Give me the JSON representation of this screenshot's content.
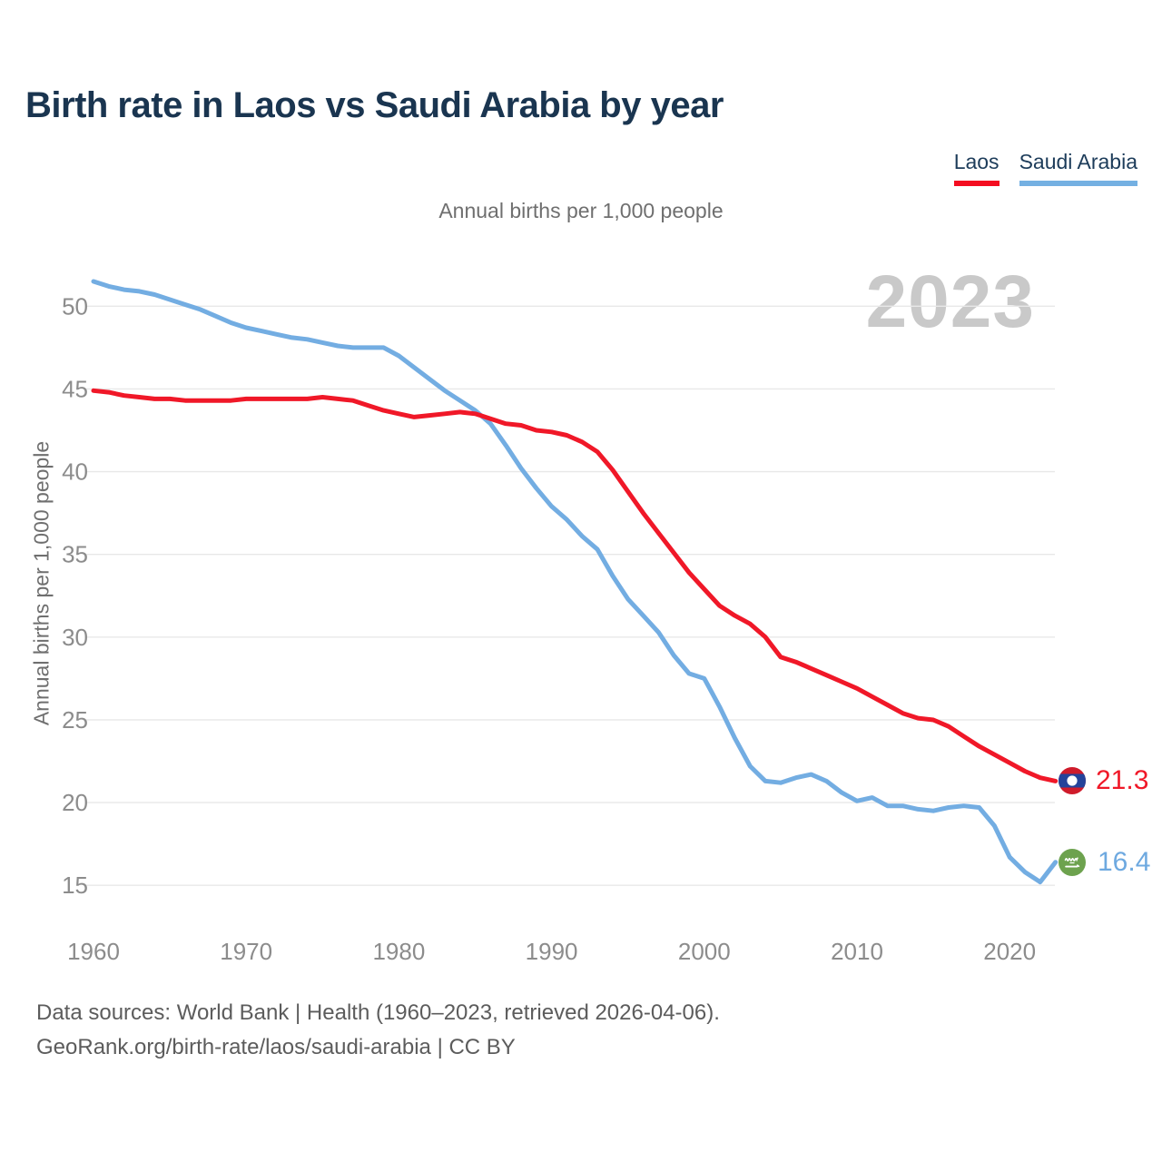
{
  "title": "Birth rate in Laos vs Saudi Arabia by year",
  "subtitle": "Annual births per 1,000 people",
  "watermark": "2023",
  "legend": {
    "laos": {
      "label": "Laos",
      "color": "#f01828"
    },
    "saudi_arabia": {
      "label": "Saudi Arabia",
      "color": "#73ade2"
    }
  },
  "y_axis": {
    "label": "Annual births per 1,000 people",
    "ticks": [
      50,
      45,
      40,
      35,
      30,
      25,
      20,
      15
    ]
  },
  "x_axis": {
    "ticks": [
      1960,
      1970,
      1980,
      1990,
      2000,
      2010,
      2020
    ]
  },
  "end_labels": {
    "laos": {
      "value": "21.3",
      "flag": "laos-flag"
    },
    "saudi_arabia": {
      "value": "16.4",
      "flag": "saudi-arabia-flag"
    }
  },
  "footer": {
    "line1": "Data sources: World Bank | Health (1960–2023, retrieved 2026-04-06).",
    "line2": "GeoRank.org/birth-rate/laos/saudi-arabia | CC BY"
  },
  "chart_data": {
    "type": "line",
    "title": "Birth rate in Laos vs Saudi Arabia by year",
    "subtitle": "Annual births per 1,000 people",
    "xlabel": "",
    "ylabel": "Annual births per 1,000 people",
    "xlim": [
      1960,
      2023
    ],
    "ylim": [
      15,
      52
    ],
    "grid": "horizontal",
    "legend_position": "top-right",
    "watermark": "2023",
    "x": [
      1960,
      1961,
      1962,
      1963,
      1964,
      1965,
      1966,
      1967,
      1968,
      1969,
      1970,
      1971,
      1972,
      1973,
      1974,
      1975,
      1976,
      1977,
      1978,
      1979,
      1980,
      1981,
      1982,
      1983,
      1984,
      1985,
      1986,
      1987,
      1988,
      1989,
      1990,
      1991,
      1992,
      1993,
      1994,
      1995,
      1996,
      1997,
      1998,
      1999,
      2000,
      2001,
      2002,
      2003,
      2004,
      2005,
      2006,
      2007,
      2008,
      2009,
      2010,
      2011,
      2012,
      2013,
      2014,
      2015,
      2016,
      2017,
      2018,
      2019,
      2020,
      2021,
      2022,
      2023
    ],
    "series": [
      {
        "name": "Laos",
        "color": "#f01828",
        "end_value": 21.3,
        "values": [
          44.9,
          44.8,
          44.6,
          44.5,
          44.4,
          44.4,
          44.3,
          44.3,
          44.3,
          44.3,
          44.4,
          44.4,
          44.4,
          44.4,
          44.4,
          44.5,
          44.4,
          44.3,
          44.0,
          43.7,
          43.5,
          43.3,
          43.4,
          43.5,
          43.6,
          43.5,
          43.2,
          42.9,
          42.8,
          42.5,
          42.4,
          42.2,
          41.8,
          41.2,
          40.1,
          38.8,
          37.5,
          36.3,
          35.1,
          33.9,
          32.9,
          31.9,
          31.3,
          30.8,
          30.0,
          28.8,
          28.5,
          28.1,
          27.7,
          27.3,
          26.9,
          26.4,
          25.9,
          25.4,
          25.1,
          25.0,
          24.6,
          24.0,
          23.4,
          22.9,
          22.4,
          21.9,
          21.5,
          21.3
        ]
      },
      {
        "name": "Saudi Arabia",
        "color": "#73ade2",
        "end_value": 16.4,
        "values": [
          51.5,
          51.2,
          51.0,
          50.9,
          50.7,
          50.4,
          50.1,
          49.8,
          49.4,
          49.0,
          48.7,
          48.5,
          48.3,
          48.1,
          48.0,
          47.8,
          47.6,
          47.5,
          47.5,
          47.5,
          47.0,
          46.3,
          45.6,
          44.9,
          44.3,
          43.7,
          42.9,
          41.6,
          40.2,
          39.0,
          37.9,
          37.1,
          36.1,
          35.3,
          33.7,
          32.3,
          31.3,
          30.3,
          28.9,
          27.8,
          27.5,
          25.8,
          23.9,
          22.2,
          21.3,
          21.2,
          21.5,
          21.7,
          21.3,
          20.6,
          20.1,
          20.3,
          19.8,
          19.8,
          19.6,
          19.5,
          19.7,
          19.8,
          19.7,
          18.6,
          16.7,
          15.8,
          15.2,
          16.4
        ]
      }
    ]
  }
}
